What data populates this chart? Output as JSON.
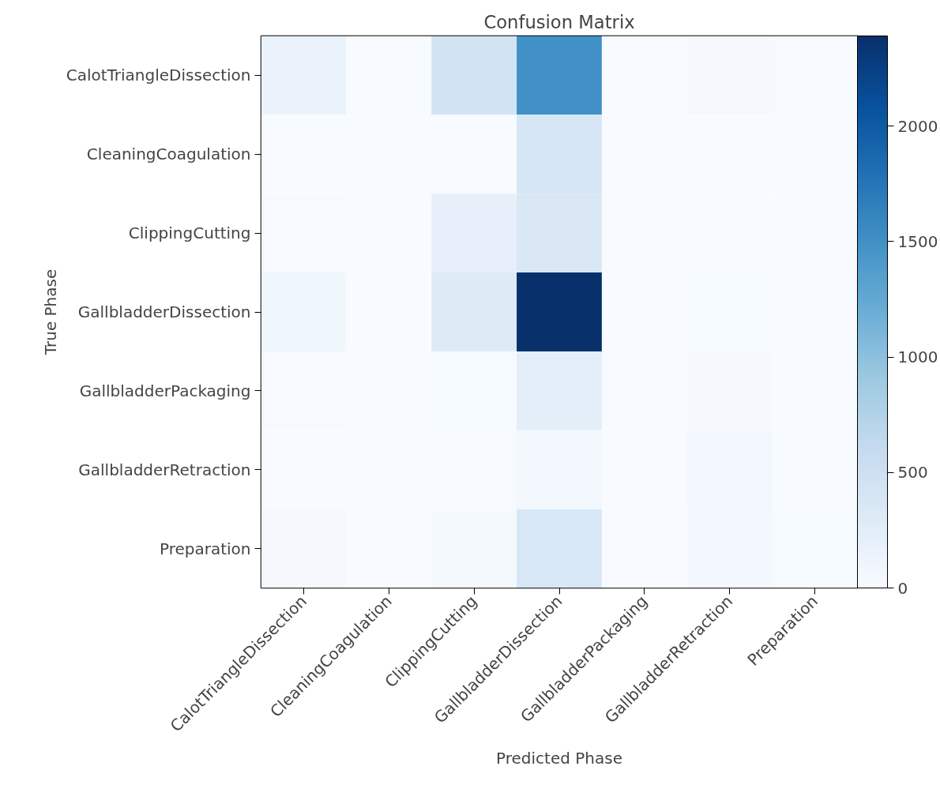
{
  "chart_data": {
    "type": "heatmap",
    "title": "Confusion Matrix",
    "xlabel": "Predicted Phase",
    "ylabel": "True Phase",
    "categories": [
      "CalotTriangleDissection",
      "CleaningCoagulation",
      "ClippingCutting",
      "GallbladderDissection",
      "GallbladderPackaging",
      "GallbladderRetraction",
      "Preparation"
    ],
    "y_categories": [
      "CalotTriangleDissection",
      "CleaningCoagulation",
      "ClippingCutting",
      "GallbladderDissection",
      "GallbladderPackaging",
      "GallbladderRetraction",
      "Preparation"
    ],
    "cells": [
      [
        150,
        5,
        450,
        1500,
        5,
        30,
        10
      ],
      [
        5,
        2,
        5,
        400,
        2,
        5,
        2
      ],
      [
        10,
        2,
        200,
        350,
        2,
        5,
        5
      ],
      [
        100,
        5,
        300,
        2390,
        5,
        20,
        10
      ],
      [
        10,
        2,
        20,
        250,
        2,
        30,
        5
      ],
      [
        5,
        2,
        10,
        80,
        5,
        80,
        5
      ],
      [
        30,
        5,
        40,
        380,
        5,
        50,
        20
      ]
    ],
    "clim": [
      0,
      2390
    ],
    "cticks": [
      0,
      500,
      1000,
      1500,
      2000
    ]
  }
}
